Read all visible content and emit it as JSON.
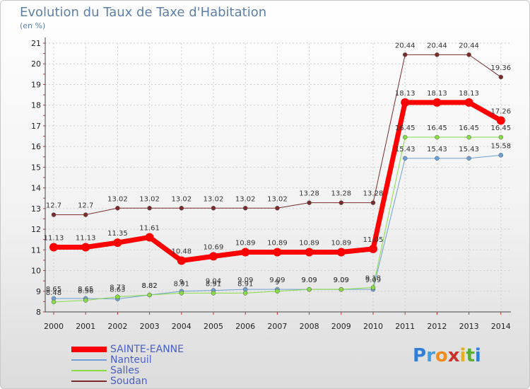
{
  "title": "Evolution du Taux de Taxe d'Habitation",
  "subtitle": "(en %)",
  "logo": {
    "text": "Proxiti",
    "letters": [
      {
        "ch": "P",
        "color": "#2f7fd8"
      },
      {
        "ch": "r",
        "color": "#3f9de0"
      },
      {
        "ch": "o",
        "color": "#f28c1e"
      },
      {
        "ch": "x",
        "color": "#c8342b"
      },
      {
        "ch": "i",
        "color": "#e8b01c"
      },
      {
        "ch": "t",
        "color": "#5aae33"
      },
      {
        "ch": "i",
        "color": "#2f7fd8"
      }
    ]
  },
  "chart_data": {
    "type": "line",
    "x": [
      "2000",
      "2001",
      "2002",
      "2003",
      "2004",
      "2005",
      "2006",
      "2007",
      "2008",
      "2009",
      "2010",
      "2011",
      "2012",
      "2013",
      "2014"
    ],
    "ylim": [
      8,
      21
    ],
    "yticks": [
      8,
      9,
      10,
      11,
      12,
      13,
      14,
      15,
      16,
      17,
      18,
      19,
      20,
      21
    ],
    "grid": true,
    "legend_position": "bottom-left",
    "series": [
      {
        "name": "SAINTE-EANNE",
        "color": "#ff0000",
        "width": 7,
        "values": [
          11.13,
          11.13,
          11.35,
          11.61,
          10.48,
          10.69,
          10.89,
          10.89,
          10.89,
          10.89,
          11.05,
          18.13,
          18.13,
          18.13,
          17.26
        ],
        "labels": [
          "11.13",
          "11.13",
          "11.35",
          "11.61",
          "10.48",
          "10.69",
          "10.89",
          "10.89",
          "10.89",
          "10.89",
          "11.05",
          "18.13",
          "18.13",
          "18.13",
          "17.26"
        ]
      },
      {
        "name": "Nanteuil",
        "color": "#6ea0d6",
        "width": 1,
        "values": [
          8.65,
          8.65,
          8.63,
          8.82,
          9.0,
          9.04,
          9.09,
          9.09,
          9.09,
          9.09,
          9.09,
          15.43,
          15.43,
          15.43,
          15.58
        ],
        "labels": [
          "8.65",
          "8.65",
          "8.63",
          "8.82",
          "9",
          "9.04",
          "9.09",
          "9.09",
          "9.09",
          "9.09",
          "9.09",
          "15.43",
          "15.43",
          "15.43",
          "15.58"
        ]
      },
      {
        "name": "Salles",
        "color": "#88dd44",
        "width": 1,
        "values": [
          8.48,
          8.56,
          8.73,
          8.82,
          8.91,
          8.91,
          8.91,
          9.0,
          9.09,
          9.09,
          9.18,
          16.45,
          16.45,
          16.45,
          16.45
        ],
        "labels": [
          "8.48",
          "8.56",
          "8.73",
          "8.82",
          "8.91",
          "8.91",
          "8.91",
          "9",
          "9.09",
          "9.09",
          "9.18",
          "16.45",
          "16.45",
          "16.45",
          "16.45"
        ]
      },
      {
        "name": "Soudan",
        "color": "#7a2c2c",
        "width": 1,
        "values": [
          12.7,
          12.7,
          13.02,
          13.02,
          13.02,
          13.02,
          13.02,
          13.02,
          13.28,
          13.28,
          13.28,
          20.44,
          20.44,
          20.44,
          19.36
        ],
        "labels": [
          "12.7",
          "12.7",
          "13.02",
          "13.02",
          "13.02",
          "13.02",
          "13.02",
          "13.02",
          "13.28",
          "13.28",
          "13.28",
          "20.44",
          "20.44",
          "20.44",
          "19.36"
        ]
      }
    ]
  }
}
